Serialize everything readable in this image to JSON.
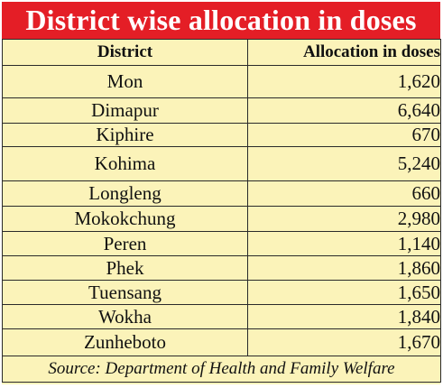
{
  "chart_data": {
    "type": "table",
    "title": "District wise allocation in doses",
    "columns": [
      "District",
      "Allocation in doses"
    ],
    "rows": [
      {
        "district": "Mon",
        "allocation": "1,620"
      },
      {
        "district": "Dimapur",
        "allocation": "6,640"
      },
      {
        "district": "Kiphire",
        "allocation": "670"
      },
      {
        "district": "Kohima",
        "allocation": "5,240"
      },
      {
        "district": "Longleng",
        "allocation": "660"
      },
      {
        "district": "Mokokchung",
        "allocation": "2,980"
      },
      {
        "district": "Peren",
        "allocation": "1,140"
      },
      {
        "district": "Phek",
        "allocation": "1,860"
      },
      {
        "district": "Tuensang",
        "allocation": "1,650"
      },
      {
        "district": "Wokha",
        "allocation": "1,840"
      },
      {
        "district": "Zunheboto",
        "allocation": "1,670"
      }
    ],
    "source": "Source: Department of Health and Family Welfare"
  },
  "colors": {
    "title_bg": "#e41e26",
    "table_bg": "#fbf3b9",
    "title_text": "#ffffff"
  }
}
